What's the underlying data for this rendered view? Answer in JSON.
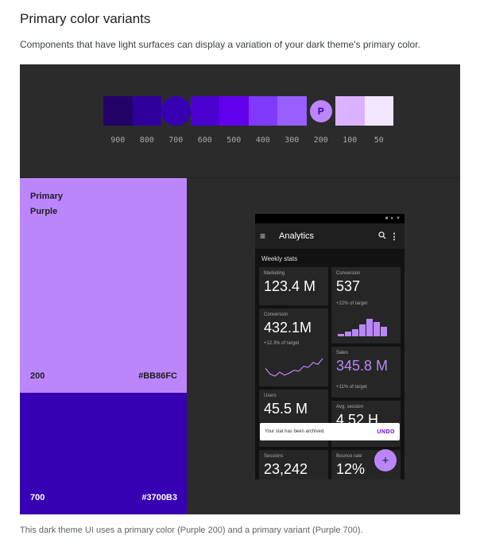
{
  "header": {
    "title": "Primary color variants",
    "description": "Components that have light surfaces can display a variation of your dark theme's primary color."
  },
  "palette": {
    "swatches": [
      {
        "label": "900",
        "color": "#23036A",
        "shape": "square"
      },
      {
        "label": "800",
        "color": "#30009C",
        "shape": "square"
      },
      {
        "label": "700",
        "color": "#3700B3",
        "shape": "circle"
      },
      {
        "label": "600",
        "color": "#4B01D0",
        "shape": "square"
      },
      {
        "label": "500",
        "color": "#6200EE",
        "shape": "square"
      },
      {
        "label": "400",
        "color": "#7F39FB",
        "shape": "square"
      },
      {
        "label": "300",
        "color": "#985EFF",
        "shape": "square"
      },
      {
        "label": "200",
        "color": "#BB86FC",
        "shape": "letter",
        "letter": "P"
      },
      {
        "label": "100",
        "color": "#DBB2FF",
        "shape": "square"
      },
      {
        "label": "50",
        "color": "#F2E7FE",
        "shape": "square"
      }
    ]
  },
  "primary_block": {
    "title_line1": "Primary",
    "title_line2": "Purple",
    "number": "200",
    "hex": "#BB86FC"
  },
  "variant_block": {
    "number": "700",
    "hex": "#3700B3"
  },
  "phone": {
    "status_icons": [
      "■",
      "●",
      "▼"
    ],
    "app_bar": {
      "menu_icon": "≡",
      "title": "Analytics",
      "search_icon": "🔍",
      "more_icon": "⋮"
    },
    "section_label": "Weekly stats",
    "cards": {
      "marketing": {
        "label": "Marketing",
        "value": "123.4 M"
      },
      "conversion_right": {
        "label": "Conversion",
        "value": "537",
        "sub": "+22% of target"
      },
      "conversion_left": {
        "label": "Conversion",
        "value": "432.1M",
        "sub": "+12.3% of target"
      },
      "sales": {
        "label": "Sales",
        "value": "345.8 M",
        "sub": "+11% of target"
      },
      "users": {
        "label": "Users",
        "value": "45.5 M"
      },
      "avg_session": {
        "label": "Avg. session",
        "value": "4.52 H"
      },
      "sessions": {
        "label": "Sessions",
        "value": "23,242"
      },
      "bounce_rate": {
        "label": "Bounce rate",
        "value": "12%"
      }
    },
    "bar_values": [
      2,
      4,
      6,
      10,
      15,
      12,
      8
    ],
    "sparkline_values": [
      14,
      8,
      6,
      10,
      7,
      9,
      12,
      11,
      16,
      15,
      20,
      18,
      24
    ],
    "snackbar": {
      "message": "Your stat has been archived.",
      "action": "UNDO"
    },
    "fab_icon": "+"
  },
  "caption": "This dark theme UI uses a primary color (Purple 200) and a primary variant (Purple 700)."
}
